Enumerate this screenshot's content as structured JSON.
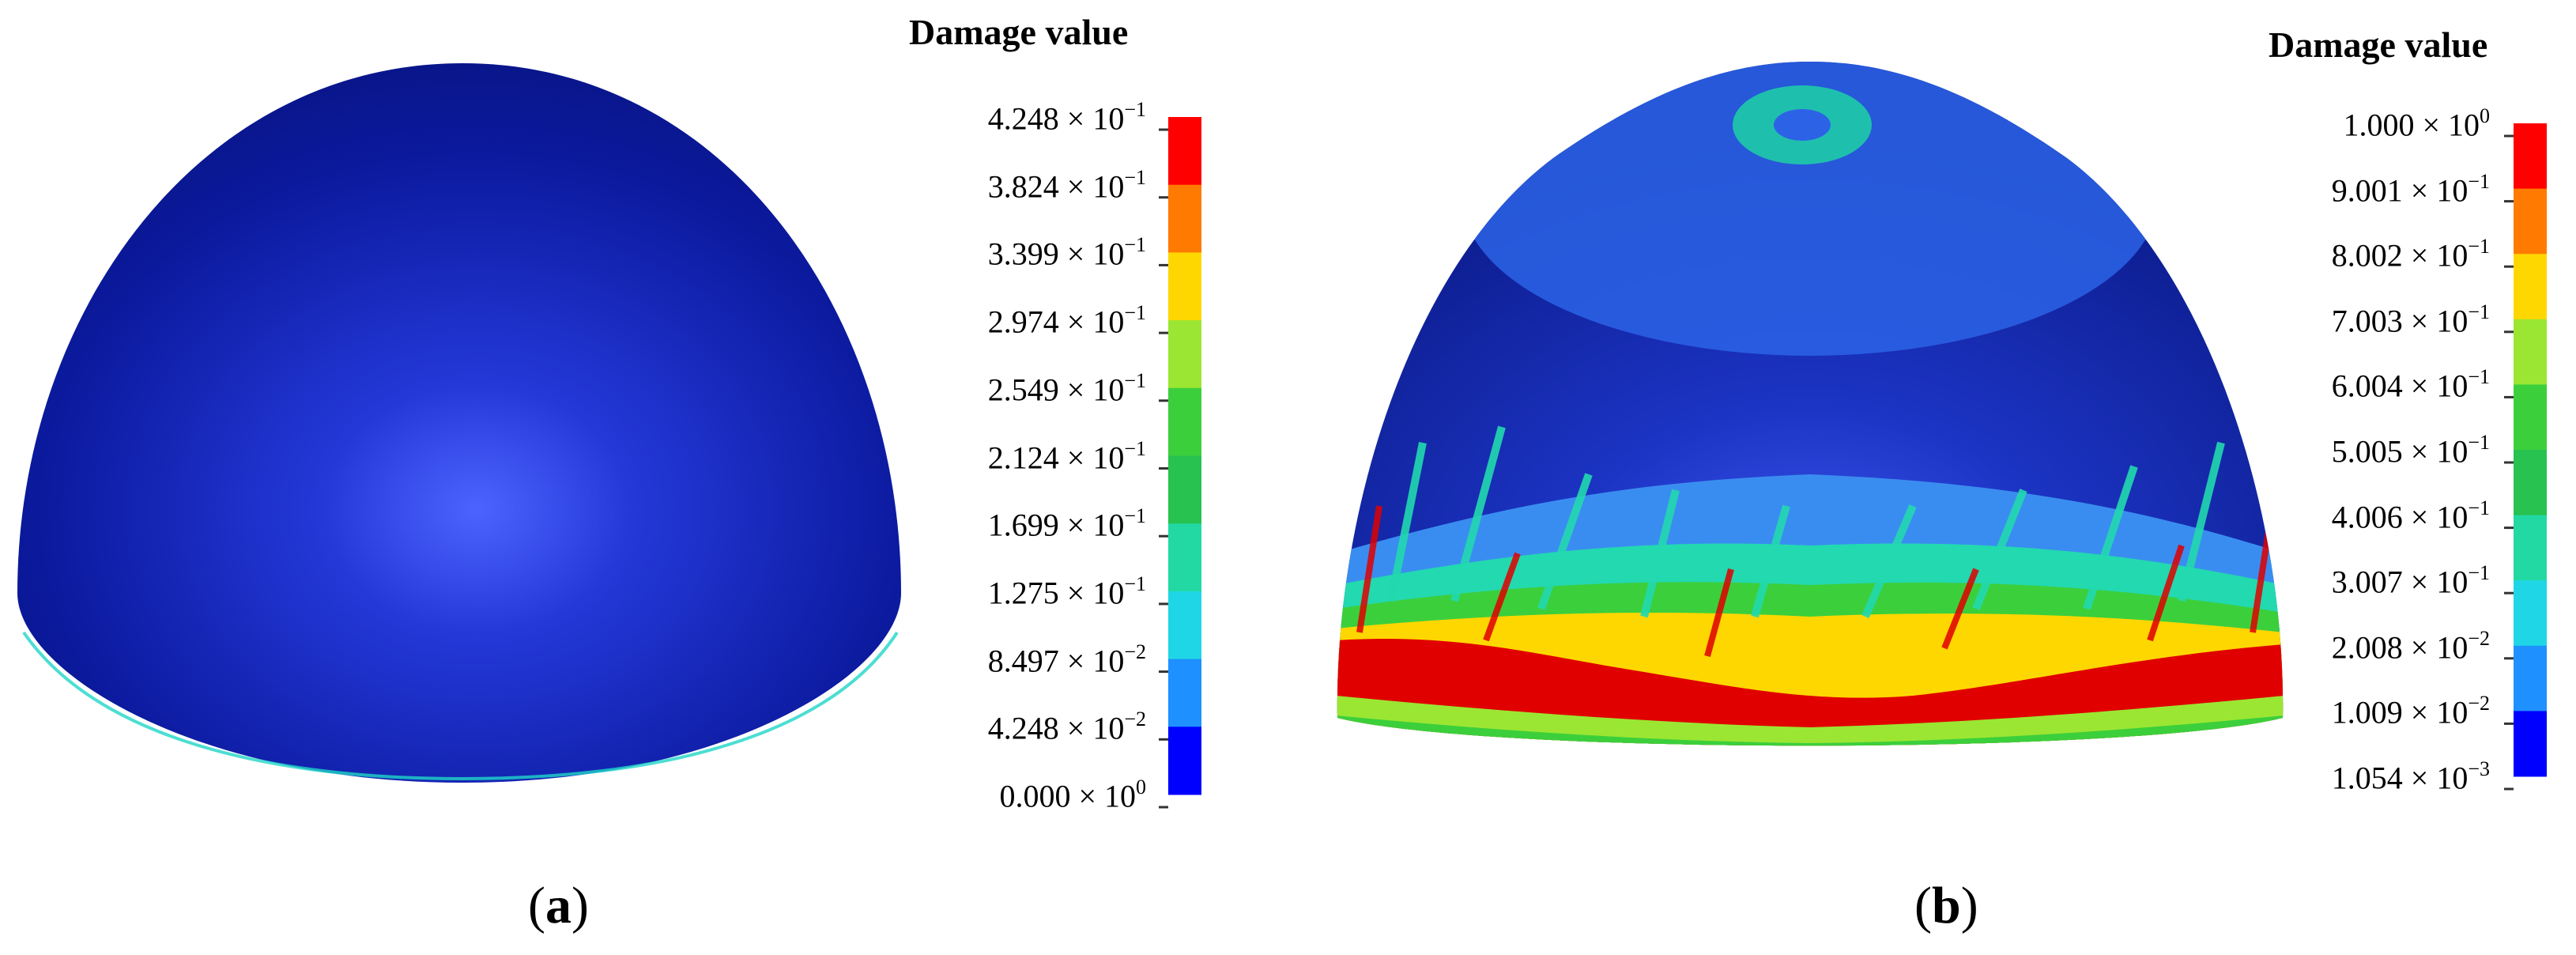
{
  "panels": [
    {
      "label": "a",
      "legend": {
        "title": "Damage value",
        "ticks": [
          {
            "mantissa": "4.248",
            "exponent": "−1"
          },
          {
            "mantissa": "3.824",
            "exponent": "−1"
          },
          {
            "mantissa": "3.399",
            "exponent": "−1"
          },
          {
            "mantissa": "2.974",
            "exponent": "−1"
          },
          {
            "mantissa": "2.549",
            "exponent": "−1"
          },
          {
            "mantissa": "2.124",
            "exponent": "−1"
          },
          {
            "mantissa": "1.699",
            "exponent": "−1"
          },
          {
            "mantissa": "1.275",
            "exponent": "−1"
          },
          {
            "mantissa": "8.497",
            "exponent": "−2"
          },
          {
            "mantissa": "4.248",
            "exponent": "−2"
          },
          {
            "mantissa": "0.000",
            "exponent": "0"
          }
        ],
        "colors": [
          "#ff0000",
          "#ff7a00",
          "#ffd700",
          "#9be632",
          "#3ccf3c",
          "#27c24f",
          "#22d9a3",
          "#1fd6e6",
          "#1e90ff",
          "#0000ff"
        ]
      }
    },
    {
      "label": "b",
      "legend": {
        "title": "Damage value",
        "ticks": [
          {
            "mantissa": "1.000",
            "exponent": "0"
          },
          {
            "mantissa": "9.001",
            "exponent": "−1"
          },
          {
            "mantissa": "8.002",
            "exponent": "−1"
          },
          {
            "mantissa": "7.003",
            "exponent": "−1"
          },
          {
            "mantissa": "6.004",
            "exponent": "−1"
          },
          {
            "mantissa": "5.005",
            "exponent": "−1"
          },
          {
            "mantissa": "4.006",
            "exponent": "−1"
          },
          {
            "mantissa": "3.007",
            "exponent": "−1"
          },
          {
            "mantissa": "2.008",
            "exponent": "−2"
          },
          {
            "mantissa": "1.009",
            "exponent": "−2"
          },
          {
            "mantissa": "1.054",
            "exponent": "−3"
          }
        ],
        "colors": [
          "#ff0000",
          "#ff7a00",
          "#ffd700",
          "#9be632",
          "#3ccf3c",
          "#27c24f",
          "#22d9a3",
          "#1fd6e6",
          "#1e90ff",
          "#0000ff"
        ]
      }
    }
  ],
  "times_symbol": "×",
  "base": "10"
}
